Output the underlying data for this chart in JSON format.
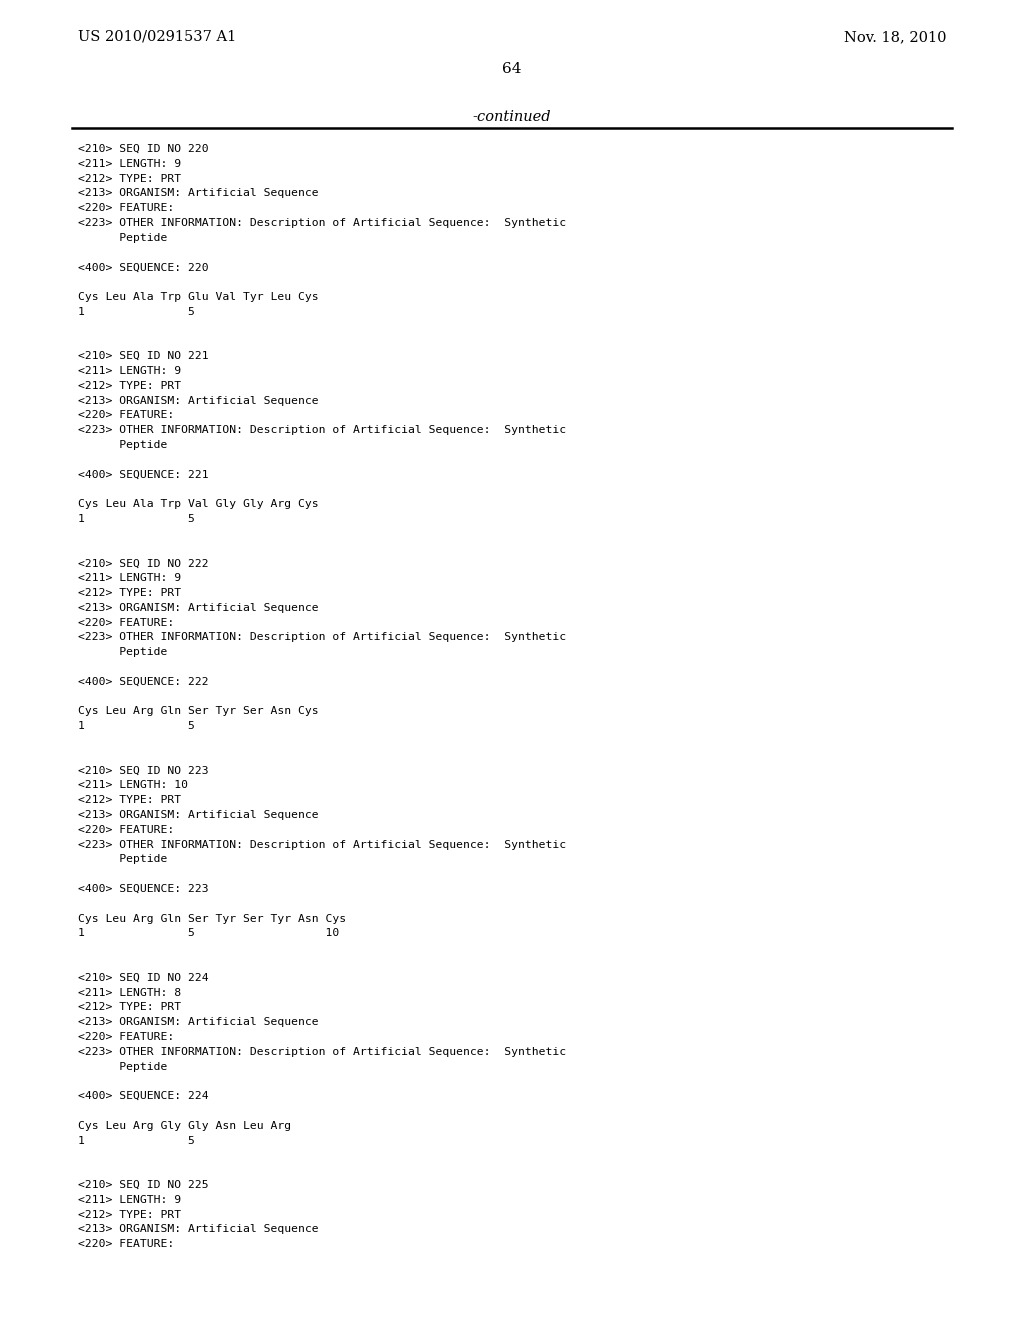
{
  "header_left": "US 2010/0291537 A1",
  "header_right": "Nov. 18, 2010",
  "page_number": "64",
  "continued_text": "-continued",
  "background_color": "#ffffff",
  "text_color": "#000000",
  "content": [
    "<210> SEQ ID NO 220",
    "<211> LENGTH: 9",
    "<212> TYPE: PRT",
    "<213> ORGANISM: Artificial Sequence",
    "<220> FEATURE:",
    "<223> OTHER INFORMATION: Description of Artificial Sequence:  Synthetic",
    "      Peptide",
    "",
    "<400> SEQUENCE: 220",
    "",
    "Cys Leu Ala Trp Glu Val Tyr Leu Cys",
    "1               5",
    "",
    "",
    "<210> SEQ ID NO 221",
    "<211> LENGTH: 9",
    "<212> TYPE: PRT",
    "<213> ORGANISM: Artificial Sequence",
    "<220> FEATURE:",
    "<223> OTHER INFORMATION: Description of Artificial Sequence:  Synthetic",
    "      Peptide",
    "",
    "<400> SEQUENCE: 221",
    "",
    "Cys Leu Ala Trp Val Gly Gly Arg Cys",
    "1               5",
    "",
    "",
    "<210> SEQ ID NO 222",
    "<211> LENGTH: 9",
    "<212> TYPE: PRT",
    "<213> ORGANISM: Artificial Sequence",
    "<220> FEATURE:",
    "<223> OTHER INFORMATION: Description of Artificial Sequence:  Synthetic",
    "      Peptide",
    "",
    "<400> SEQUENCE: 222",
    "",
    "Cys Leu Arg Gln Ser Tyr Ser Asn Cys",
    "1               5",
    "",
    "",
    "<210> SEQ ID NO 223",
    "<211> LENGTH: 10",
    "<212> TYPE: PRT",
    "<213> ORGANISM: Artificial Sequence",
    "<220> FEATURE:",
    "<223> OTHER INFORMATION: Description of Artificial Sequence:  Synthetic",
    "      Peptide",
    "",
    "<400> SEQUENCE: 223",
    "",
    "Cys Leu Arg Gln Ser Tyr Ser Tyr Asn Cys",
    "1               5                   10",
    "",
    "",
    "<210> SEQ ID NO 224",
    "<211> LENGTH: 8",
    "<212> TYPE: PRT",
    "<213> ORGANISM: Artificial Sequence",
    "<220> FEATURE:",
    "<223> OTHER INFORMATION: Description of Artificial Sequence:  Synthetic",
    "      Peptide",
    "",
    "<400> SEQUENCE: 224",
    "",
    "Cys Leu Arg Gly Gly Asn Leu Arg",
    "1               5",
    "",
    "",
    "<210> SEQ ID NO 225",
    "<211> LENGTH: 9",
    "<212> TYPE: PRT",
    "<213> ORGANISM: Artificial Sequence",
    "<220> FEATURE:"
  ]
}
